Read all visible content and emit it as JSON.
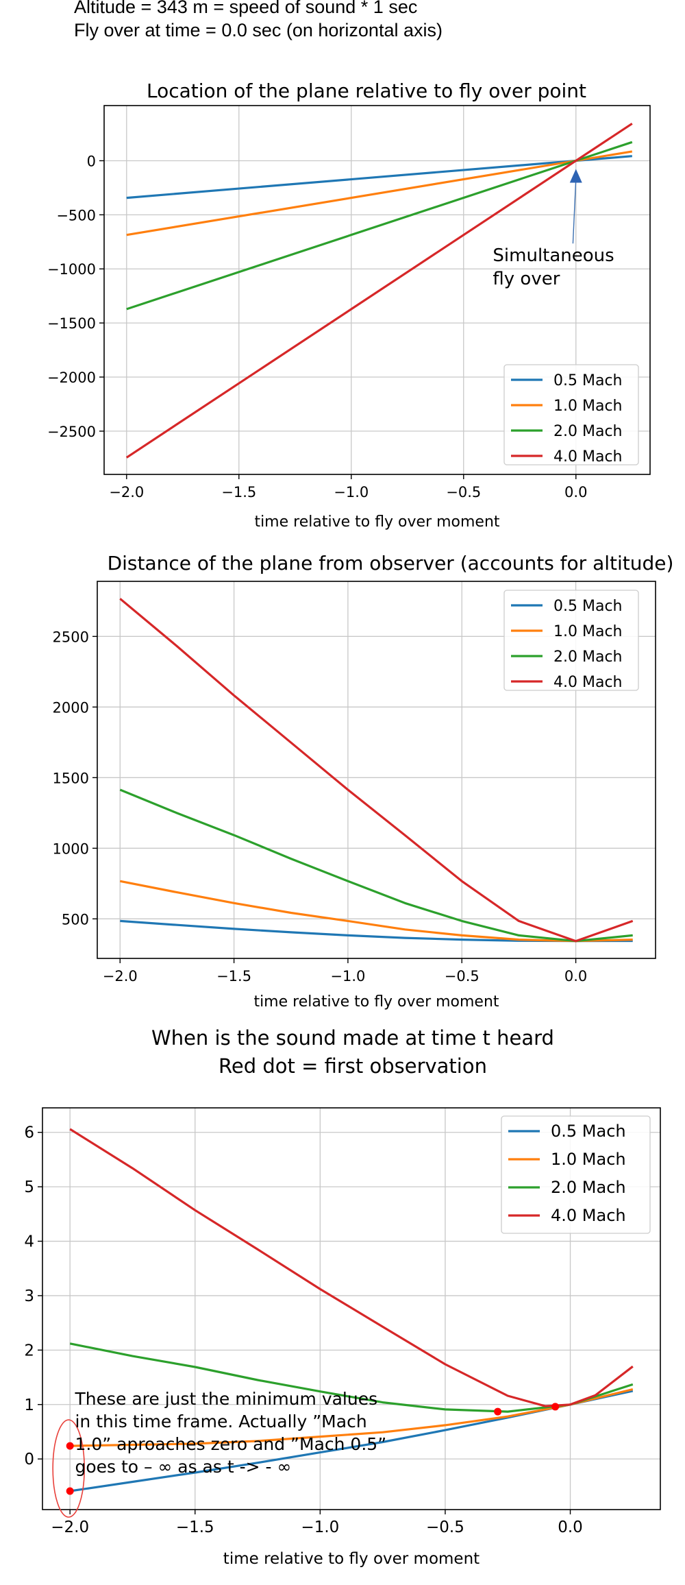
{
  "header": {
    "line1": "Altitude = 343 m = speed of sound * 1 sec",
    "line2": "Fly over at time = 0.0 sec (on horizontal axis)"
  },
  "colors": {
    "0.5 Mach": "#1f77b4",
    "1.0 Mach": "#ff7f0e",
    "2.0 Mach": "#2ca02c",
    "4.0 Mach": "#d62728",
    "marker": "#ff0000",
    "ellipse": "#e8403a"
  },
  "chart_data": [
    {
      "type": "line",
      "title": "Location of the plane relative to fly over point",
      "xlabel": "time relative to fly over moment",
      "ylabel": "",
      "xlim": [
        -2.1,
        0.33
      ],
      "ylim": [
        -2900,
        510
      ],
      "xticks": [
        -2.0,
        -1.5,
        -1.0,
        -0.5,
        0.0
      ],
      "xtick_labels": [
        "−2.0",
        "−1.5",
        "−1.0",
        "−0.5",
        "0.0"
      ],
      "yticks": [
        0,
        -500,
        -1000,
        -1500,
        -2000,
        -2500
      ],
      "ytick_labels": [
        "0",
        "−500",
        "−1000",
        "−1500",
        "−2000",
        "−2500"
      ],
      "grid": true,
      "legend": "bottom-right",
      "series": [
        {
          "name": "0.5 Mach",
          "x": [
            -2.0,
            0.25
          ],
          "y": [
            -343,
            43
          ]
        },
        {
          "name": "1.0 Mach",
          "x": [
            -2.0,
            0.25
          ],
          "y": [
            -686,
            86
          ]
        },
        {
          "name": "2.0 Mach",
          "x": [
            -2.0,
            0.25
          ],
          "y": [
            -1372,
            172
          ]
        },
        {
          "name": "4.0 Mach",
          "x": [
            -2.0,
            0.25
          ],
          "y": [
            -2744,
            343
          ]
        }
      ],
      "annotation": {
        "text_lines": [
          "Simultaneous",
          "fly over"
        ],
        "point": [
          0.0,
          0
        ],
        "text_pos": [
          -0.37,
          -930
        ]
      }
    },
    {
      "type": "line",
      "title": "Distance of the plane from observer (accounts for altitude)",
      "xlabel": "time relative to fly over moment",
      "ylabel": "",
      "xlim": [
        -2.1,
        0.35
      ],
      "ylim": [
        220,
        2890
      ],
      "xticks": [
        -2.0,
        -1.5,
        -1.0,
        -0.5,
        0.0
      ],
      "xtick_labels": [
        "−2.0",
        "−1.5",
        "−1.0",
        "−0.5",
        "0.0"
      ],
      "yticks": [
        500,
        1000,
        1500,
        2000,
        2500
      ],
      "ytick_labels": [
        "500",
        "1000",
        "1500",
        "2000",
        "2500"
      ],
      "grid": true,
      "legend": "top-right",
      "series": [
        {
          "name": "0.5 Mach",
          "x": [
            -2.0,
            -1.75,
            -1.5,
            -1.25,
            -1.0,
            -0.75,
            -0.5,
            -0.25,
            0.0,
            0.25
          ],
          "y": [
            485,
            457,
            429,
            405,
            383,
            365,
            353,
            345,
            343,
            344
          ]
        },
        {
          "name": "1.0 Mach",
          "x": [
            -2.0,
            -1.75,
            -1.5,
            -1.25,
            -1.0,
            -0.75,
            -0.5,
            -0.25,
            0.0,
            0.25
          ],
          "y": [
            767,
            688,
            612,
            543,
            485,
            425,
            383,
            353,
            343,
            353
          ]
        },
        {
          "name": "2.0 Mach",
          "x": [
            -2.0,
            -1.75,
            -1.5,
            -1.25,
            -1.0,
            -0.75,
            -0.5,
            -0.25,
            0.0,
            0.25
          ],
          "y": [
            1414,
            1249,
            1093,
            926,
            767,
            612,
            485,
            383,
            343,
            383
          ]
        },
        {
          "name": "4.0 Mach",
          "x": [
            -2.0,
            -1.75,
            -1.5,
            -1.25,
            -1.0,
            -0.75,
            -0.5,
            -0.25,
            0.0,
            0.25
          ],
          "y": [
            2767,
            2431,
            2082,
            1748,
            1414,
            1093,
            767,
            485,
            343,
            485
          ]
        }
      ]
    },
    {
      "type": "line",
      "title": "When is the sound made at time t heard",
      "subtitle": "Red dot = first observation",
      "xlabel": "time relative to fly over moment",
      "ylabel": "",
      "xlim": [
        -2.11,
        0.36
      ],
      "ylim": [
        -0.93,
        6.45
      ],
      "xticks": [
        -2.0,
        -1.5,
        -1.0,
        -0.5,
        0.0
      ],
      "xtick_labels": [
        "−2.0",
        "−1.5",
        "−1.0",
        "−0.5",
        "0.0"
      ],
      "yticks": [
        0,
        1,
        2,
        3,
        4,
        5,
        6
      ],
      "ytick_labels": [
        "0",
        "1",
        "2",
        "3",
        "4",
        "5",
        "6"
      ],
      "grid": true,
      "legend": "top-right",
      "series": [
        {
          "name": "0.5 Mach",
          "x": [
            -2.0,
            -1.75,
            -1.5,
            -1.25,
            -1.0,
            -0.75,
            -0.5,
            -0.25,
            0.0,
            0.25
          ],
          "y": [
            -0.59,
            -0.42,
            -0.25,
            -0.07,
            0.12,
            0.31,
            0.53,
            0.76,
            1.0,
            1.25
          ]
        },
        {
          "name": "1.0 Mach",
          "x": [
            -2.0,
            -1.75,
            -1.5,
            -1.25,
            -1.0,
            -0.75,
            -0.5,
            -0.25,
            0.0,
            0.25
          ],
          "y": [
            0.24,
            0.26,
            0.28,
            0.33,
            0.41,
            0.49,
            0.62,
            0.78,
            1.0,
            1.28
          ]
        },
        {
          "name": "2.0 Mach",
          "x": [
            -2.0,
            -1.75,
            -1.5,
            -1.25,
            -1.0,
            -0.75,
            -0.5,
            -0.25,
            0.0,
            0.25
          ],
          "y": [
            2.12,
            1.89,
            1.69,
            1.45,
            1.24,
            1.04,
            0.91,
            0.87,
            1.0,
            1.37
          ]
        },
        {
          "name": "4.0 Mach",
          "x": [
            -2.0,
            -1.75,
            -1.5,
            -1.25,
            -1.0,
            -0.75,
            -0.5,
            -0.25,
            -0.1,
            0.0,
            0.1,
            0.25
          ],
          "y": [
            6.06,
            5.34,
            4.57,
            3.85,
            3.12,
            2.43,
            1.74,
            1.16,
            0.97,
            1.0,
            1.17,
            1.7
          ]
        }
      ],
      "first_observation_points": [
        {
          "series": "0.5 Mach",
          "x": -2.0,
          "y": -0.59
        },
        {
          "series": "1.0 Mach",
          "x": -2.0,
          "y": 0.24
        },
        {
          "series": "2.0 Mach",
          "x": -0.29,
          "y": 0.87
        },
        {
          "series": "4.0 Mach",
          "x": -0.06,
          "y": 0.96
        }
      ],
      "annotation": {
        "text_lines": [
          "These are just the minimum values",
          "in this time frame. Actually ”Mach",
          "1.0” aproaches zero and ”Mach 0.5”",
          "goes to – ∞ as as t -> - ∞"
        ]
      }
    }
  ]
}
